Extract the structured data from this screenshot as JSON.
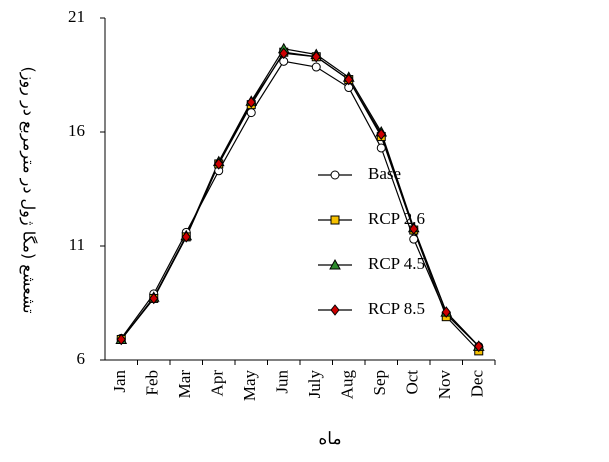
{
  "chart_data": {
    "type": "line",
    "y_label": "تشعشع (مگا ژول در مترمربع در روز)",
    "x_label": "ماه",
    "categories": [
      "Jan",
      "Feb",
      "Mar",
      "Apr",
      "May",
      "Jun",
      "July",
      "Aug",
      "Sep",
      "Oct",
      "Nov",
      "Dec"
    ],
    "series": [
      {
        "name": "Base",
        "color": "#ffffff",
        "marker": "circle",
        "values": [
          6.95,
          8.9,
          11.6,
          14.3,
          16.85,
          19.1,
          18.85,
          17.95,
          15.3,
          11.3,
          8.0,
          6.6
        ]
      },
      {
        "name": "RCP 2.6",
        "color": "#f5c000",
        "marker": "square",
        "values": [
          6.9,
          8.7,
          11.4,
          14.6,
          17.2,
          19.5,
          19.3,
          18.3,
          15.8,
          11.7,
          7.9,
          6.4
        ]
      },
      {
        "name": "RCP 4.5",
        "color": "#2e8b2e",
        "marker": "triangle",
        "values": [
          6.9,
          8.75,
          11.45,
          14.7,
          17.35,
          19.65,
          19.4,
          18.4,
          16.0,
          11.8,
          8.1,
          6.6
        ]
      },
      {
        "name": "RCP 8.5",
        "color": "#cc0000",
        "marker": "diamond",
        "values": [
          6.9,
          8.7,
          11.4,
          14.6,
          17.3,
          19.45,
          19.3,
          18.3,
          15.9,
          11.75,
          8.1,
          6.6
        ]
      }
    ],
    "ylim": [
      6,
      21
    ],
    "yticks": [
      6,
      11,
      16,
      21
    ]
  }
}
